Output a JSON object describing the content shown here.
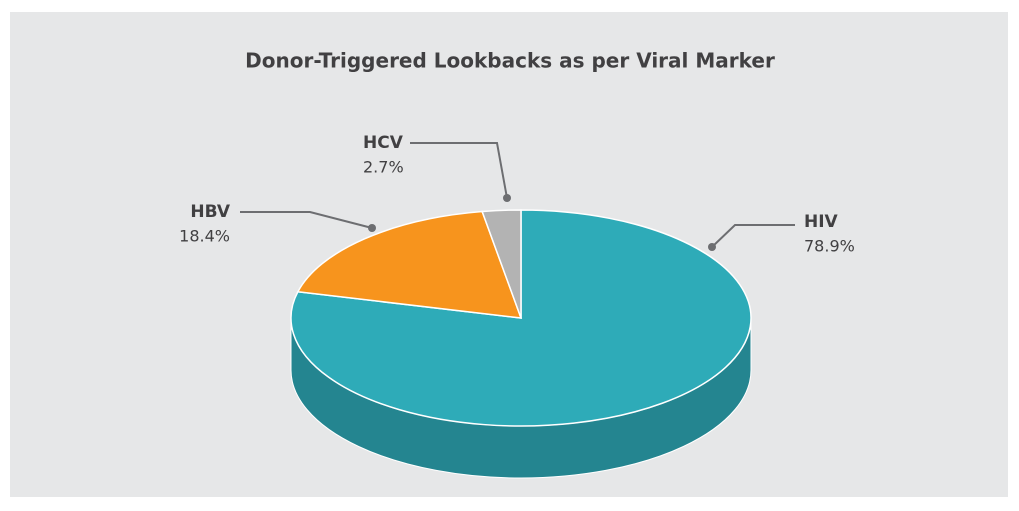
{
  "chart_data": {
    "type": "pie",
    "title": "Donor-Triggered Lookbacks as per Viral Marker",
    "categories": [
      "HIV",
      "HBV",
      "HCV"
    ],
    "values": [
      78.9,
      18.4,
      2.7
    ],
    "value_labels": [
      "78.9%",
      "18.4%",
      "2.7%"
    ],
    "colors": [
      "#2eabb8",
      "#f7941d",
      "#b3b3b3"
    ]
  }
}
